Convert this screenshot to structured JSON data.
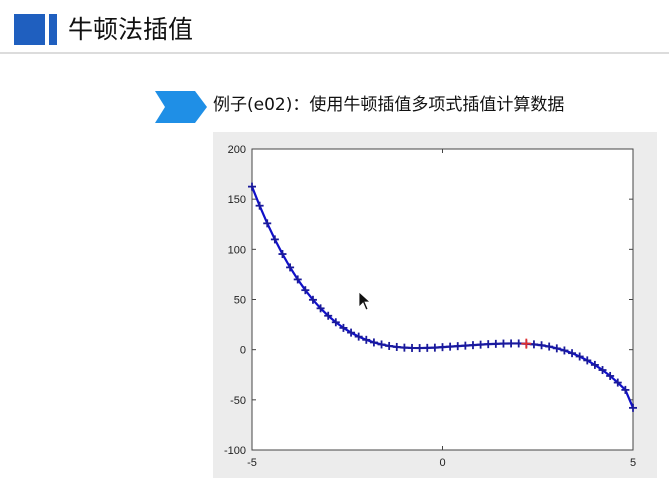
{
  "page": {
    "title": "牛顿法插值",
    "subtitle": "例子(e02)：使用牛顿插值多项式插值计算数据"
  },
  "colors": {
    "accent": "#1f5fbf",
    "arrow": "#1f8fe6",
    "curve": "#1010c8",
    "highlight": "#e03030"
  },
  "chart_data": {
    "type": "line",
    "xlim": [
      -5,
      5
    ],
    "ylim": [
      -100,
      200
    ],
    "xticks": [
      "-5",
      "0",
      "5"
    ],
    "yticks": [
      "200",
      "150",
      "100",
      "50",
      "0",
      "-50",
      "-100"
    ],
    "marker": "+",
    "series": [
      {
        "x": [
          -5,
          -4.8,
          -4.6,
          -4.4,
          -4.2,
          -4,
          -3.8,
          -3.6,
          -3.4,
          -3.2,
          -3,
          -2.8,
          -2.6,
          -2.4,
          -2.2,
          -2,
          -1.8,
          -1.6,
          -1.4,
          -1.2,
          -1,
          -0.8,
          -0.6,
          -0.4,
          -0.2,
          0,
          0.2,
          0.4,
          0.6,
          0.8,
          1,
          1.2,
          1.4,
          1.6,
          1.8,
          2,
          2.2,
          2.4,
          2.6,
          2.8,
          3,
          3.2,
          3.4,
          3.6,
          3.8,
          4,
          4.2,
          4.4,
          4.6,
          4.8,
          5
        ],
        "y": [
          162.5,
          143.5,
          125.9,
          109.9,
          95.3,
          82.0,
          70.0,
          59.3,
          49.7,
          41.2,
          33.8,
          27.3,
          21.7,
          17.0,
          13.0,
          9.8,
          7.2,
          5.2,
          3.7,
          2.7,
          2.0,
          1.7,
          1.6,
          1.8,
          2.0,
          2.5,
          3.0,
          3.5,
          4.0,
          4.5,
          5.0,
          5.5,
          5.8,
          6.1,
          6.2,
          6.2,
          5.9,
          5.3,
          4.4,
          3.1,
          1.3,
          -0.8,
          -3.5,
          -6.8,
          -10.7,
          -15.2,
          -20.3,
          -26.2,
          -32.8,
          -40.1,
          -58.0
        ]
      },
      {
        "x": [
          2.2
        ],
        "y": [
          6.0
        ]
      }
    ]
  }
}
